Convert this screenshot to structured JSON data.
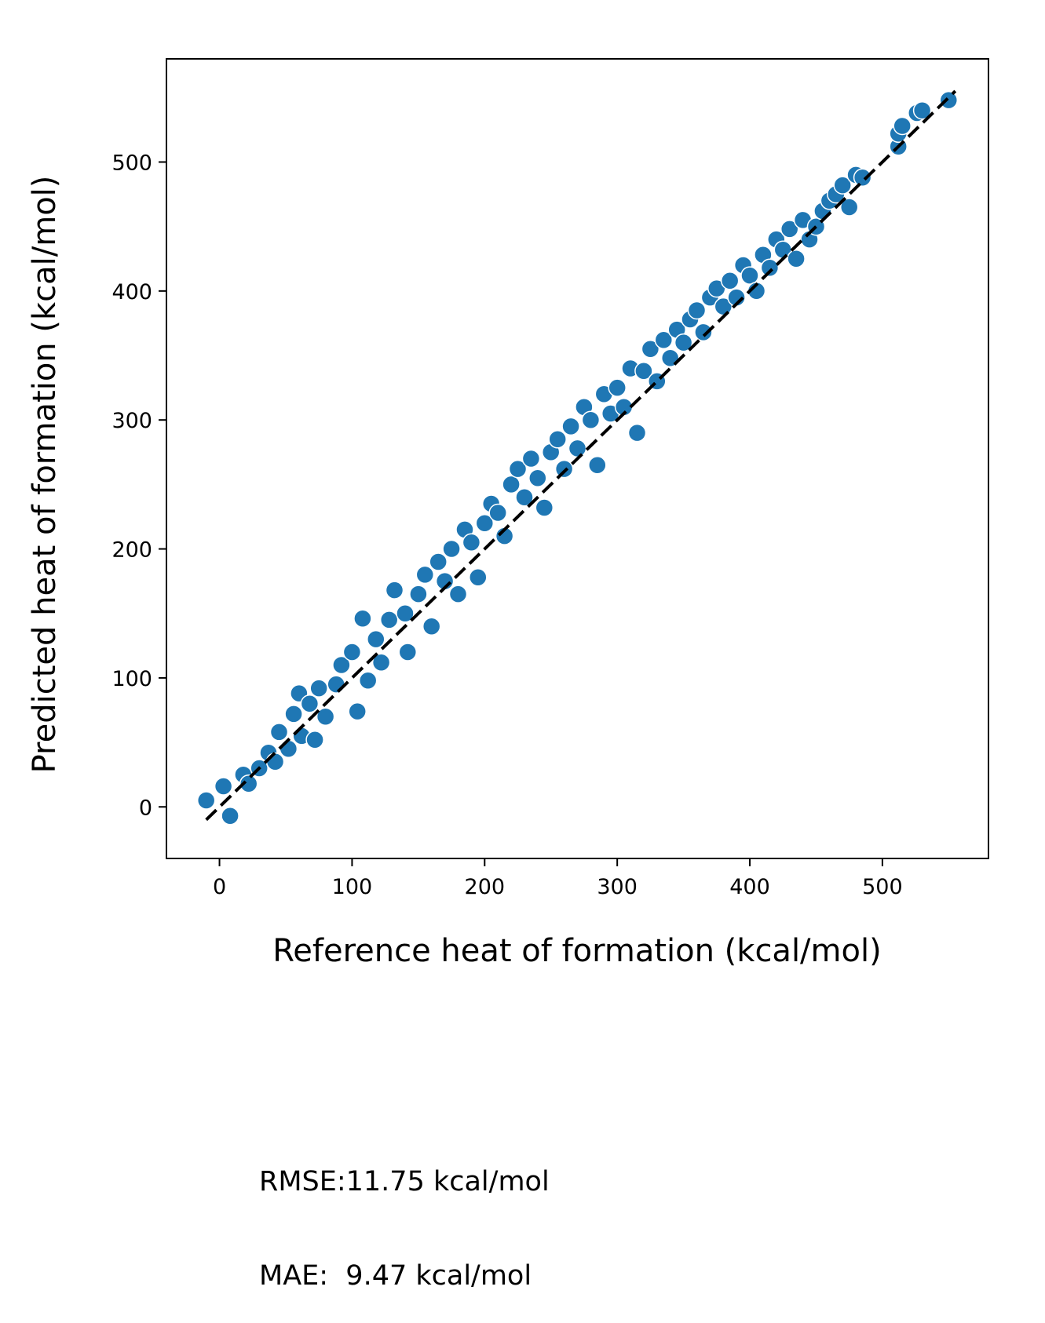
{
  "chart_data": {
    "type": "scatter",
    "title": "",
    "xlabel": "Reference heat of formation (kcal/mol)",
    "ylabel": "Predicted heat of formation (kcal/mol)",
    "xlim": [
      -40,
      580
    ],
    "ylim": [
      -40,
      580
    ],
    "xticks": [
      0,
      100,
      200,
      300,
      400,
      500
    ],
    "yticks": [
      0,
      100,
      200,
      300,
      400,
      500
    ],
    "grid": false,
    "legend": "none",
    "marker_color": "#1f77b4",
    "marker_edge_color": "#ffffff",
    "reference_line": {
      "style": "dashed",
      "color": "#000000",
      "x": [
        -10,
        555
      ],
      "y": [
        -10,
        555
      ]
    },
    "series": [
      {
        "points": [
          [
            -10,
            5
          ],
          [
            3,
            16
          ],
          [
            8,
            -7
          ],
          [
            18,
            25
          ],
          [
            22,
            18
          ],
          [
            30,
            30
          ],
          [
            37,
            42
          ],
          [
            42,
            35
          ],
          [
            45,
            58
          ],
          [
            52,
            45
          ],
          [
            56,
            72
          ],
          [
            60,
            88
          ],
          [
            62,
            55
          ],
          [
            68,
            80
          ],
          [
            72,
            52
          ],
          [
            75,
            92
          ],
          [
            80,
            70
          ],
          [
            88,
            95
          ],
          [
            92,
            110
          ],
          [
            100,
            120
          ],
          [
            104,
            74
          ],
          [
            108,
            146
          ],
          [
            112,
            98
          ],
          [
            118,
            130
          ],
          [
            122,
            112
          ],
          [
            128,
            145
          ],
          [
            132,
            168
          ],
          [
            140,
            150
          ],
          [
            142,
            120
          ],
          [
            150,
            165
          ],
          [
            155,
            180
          ],
          [
            160,
            140
          ],
          [
            165,
            190
          ],
          [
            170,
            175
          ],
          [
            175,
            200
          ],
          [
            180,
            165
          ],
          [
            185,
            215
          ],
          [
            190,
            205
          ],
          [
            195,
            178
          ],
          [
            200,
            220
          ],
          [
            205,
            235
          ],
          [
            210,
            228
          ],
          [
            215,
            210
          ],
          [
            220,
            250
          ],
          [
            225,
            262
          ],
          [
            230,
            240
          ],
          [
            235,
            270
          ],
          [
            240,
            255
          ],
          [
            245,
            232
          ],
          [
            250,
            275
          ],
          [
            255,
            285
          ],
          [
            260,
            262
          ],
          [
            265,
            295
          ],
          [
            270,
            278
          ],
          [
            275,
            310
          ],
          [
            280,
            300
          ],
          [
            285,
            265
          ],
          [
            290,
            320
          ],
          [
            295,
            305
          ],
          [
            300,
            325
          ],
          [
            305,
            310
          ],
          [
            310,
            340
          ],
          [
            315,
            290
          ],
          [
            320,
            338
          ],
          [
            325,
            355
          ],
          [
            330,
            330
          ],
          [
            335,
            362
          ],
          [
            340,
            348
          ],
          [
            345,
            370
          ],
          [
            350,
            360
          ],
          [
            355,
            378
          ],
          [
            360,
            385
          ],
          [
            365,
            368
          ],
          [
            370,
            395
          ],
          [
            375,
            402
          ],
          [
            380,
            388
          ],
          [
            385,
            408
          ],
          [
            390,
            395
          ],
          [
            395,
            420
          ],
          [
            400,
            412
          ],
          [
            405,
            400
          ],
          [
            410,
            428
          ],
          [
            415,
            418
          ],
          [
            420,
            440
          ],
          [
            425,
            432
          ],
          [
            430,
            448
          ],
          [
            435,
            425
          ],
          [
            440,
            455
          ],
          [
            445,
            440
          ],
          [
            450,
            450
          ],
          [
            455,
            462
          ],
          [
            460,
            470
          ],
          [
            465,
            475
          ],
          [
            470,
            482
          ],
          [
            475,
            465
          ],
          [
            480,
            490
          ],
          [
            485,
            488
          ],
          [
            512,
            512
          ],
          [
            512,
            522
          ],
          [
            515,
            528
          ],
          [
            526,
            538
          ],
          [
            530,
            540
          ],
          [
            550,
            548
          ]
        ]
      }
    ],
    "metrics": {
      "rmse_text": "RMSE:11.75 kcal/mol",
      "mae_text": "MAE:  9.47 kcal/mol"
    }
  }
}
